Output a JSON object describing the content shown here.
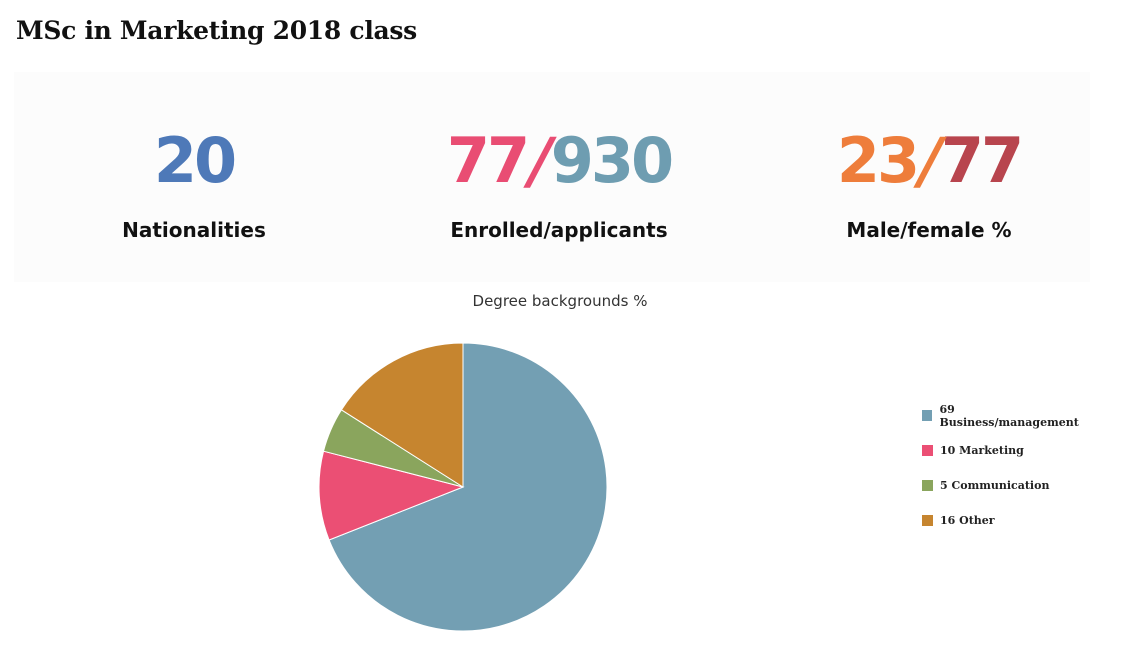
{
  "title": "MSc in Marketing 2018 class",
  "stats": [
    {
      "parts": [
        "20"
      ],
      "colors": [
        "#4e79b8"
      ],
      "label": "Nationalities"
    },
    {
      "parts": [
        "77",
        "/",
        "930"
      ],
      "colors": [
        "#e94d73",
        "#e94d73",
        "#6e9db1"
      ],
      "label": "Enrolled/applicants"
    },
    {
      "parts": [
        "23",
        "/",
        "77"
      ],
      "colors": [
        "#ee7d3b",
        "#ee7d3b",
        "#b8454e"
      ],
      "label": "Male/female %"
    }
  ],
  "chart_data": {
    "type": "pie",
    "title": "Degree backgrounds %",
    "categories": [
      "Business/management",
      "Marketing",
      "Communication",
      "Other"
    ],
    "values": [
      69,
      10,
      5,
      16
    ],
    "colors": [
      "#739fb3",
      "#eb4f74",
      "#8aa55d",
      "#c6852f"
    ],
    "legend_labels": [
      "69 Business/management",
      "10 Marketing",
      "5 Communication",
      "16 Other"
    ],
    "legend_position": "right",
    "start_angle": "12 o'clock",
    "direction": "clockwise"
  }
}
